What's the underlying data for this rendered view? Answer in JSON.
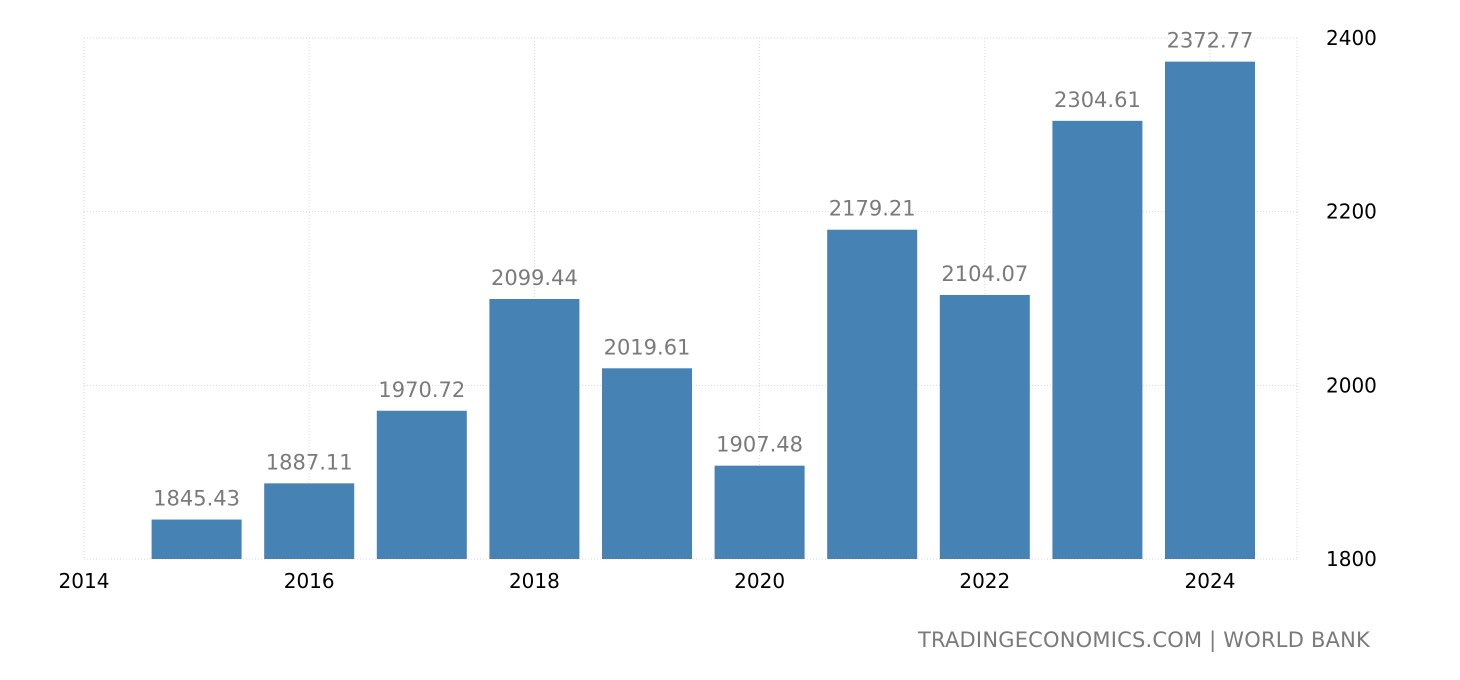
{
  "chart_data": {
    "type": "bar",
    "title": "",
    "xlabel": "",
    "ylabel": "",
    "x": [
      2015,
      2016,
      2017,
      2018,
      2019,
      2020,
      2021,
      2022,
      2023,
      2024
    ],
    "values": [
      1845.43,
      1887.11,
      1970.72,
      2099.44,
      2019.61,
      1907.48,
      2179.21,
      2104.07,
      2304.61,
      2372.77
    ],
    "data_labels": [
      "1845.43",
      "1887.11",
      "1970.72",
      "2099.44",
      "2019.61",
      "1907.48",
      "2179.21",
      "2104.07",
      "2304.61",
      "2372.77"
    ],
    "xlim": [
      2014,
      2025
    ],
    "ylim": [
      1800,
      2400
    ],
    "x_ticks": [
      "2014",
      "2016",
      "2018",
      "2020",
      "2022",
      "2024"
    ],
    "y_ticks": [
      "1800",
      "2000",
      "2200",
      "2400"
    ],
    "y_axis_side": "right",
    "grid": true,
    "legend": "none",
    "bar_color": "#4682b4"
  },
  "source": "TRADINGECONOMICS.COM | WORLD BANK"
}
